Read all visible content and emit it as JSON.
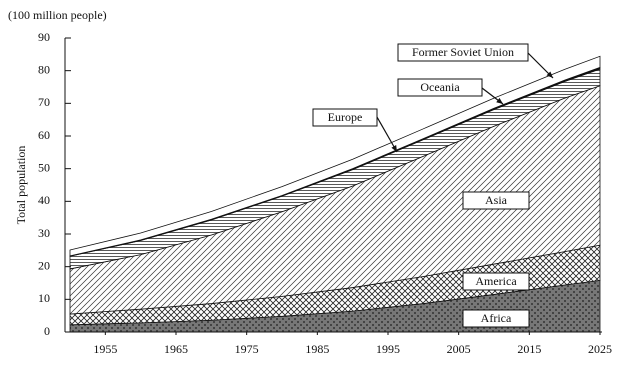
{
  "chart_data": {
    "type": "area",
    "stacked": true,
    "unit_label": "(100 million people)",
    "ylabel": "Total population",
    "x": [
      1950,
      1960,
      1970,
      1980,
      1990,
      2000,
      2010,
      2020,
      2025
    ],
    "xlim": [
      1950,
      2025
    ],
    "xticks": [
      1955,
      1965,
      1975,
      1985,
      1995,
      2005,
      2015,
      2025
    ],
    "ylim": [
      0,
      90
    ],
    "yticks": [
      0,
      10,
      20,
      30,
      40,
      50,
      60,
      70,
      80,
      90
    ],
    "series": [
      {
        "name": "Africa",
        "color": "#444444",
        "pattern": "dots",
        "values": [
          2.2,
          2.8,
          3.6,
          4.8,
          6.4,
          8.7,
          11.5,
          14.4,
          15.8
        ]
      },
      {
        "name": "America",
        "color": "#222222",
        "pattern": "crosshatch",
        "values": [
          3.3,
          4.2,
          5.1,
          6.1,
          7.2,
          8.3,
          9.3,
          10.2,
          10.8
        ]
      },
      {
        "name": "Asia",
        "color": "#333333",
        "pattern": "diagonal",
        "values": [
          13.8,
          16.7,
          21.0,
          25.9,
          31.1,
          36.8,
          42.2,
          47.0,
          48.8
        ]
      },
      {
        "name": "Europe",
        "color": "#222222",
        "pattern": "horizontal",
        "values": [
          3.9,
          4.3,
          4.6,
          4.8,
          5.0,
          5.1,
          5.1,
          5.1,
          5.1
        ]
      },
      {
        "name": "Oceania",
        "color": "#111111",
        "pattern": "solid",
        "values": [
          0.1,
          0.2,
          0.2,
          0.2,
          0.3,
          0.3,
          0.4,
          0.4,
          0.5
        ]
      },
      {
        "name": "Former Soviet Union",
        "color": "#ffffff",
        "pattern": "solid",
        "values": [
          1.8,
          2.1,
          2.4,
          2.7,
          2.9,
          3.0,
          3.1,
          3.3,
          3.4
        ]
      }
    ]
  }
}
